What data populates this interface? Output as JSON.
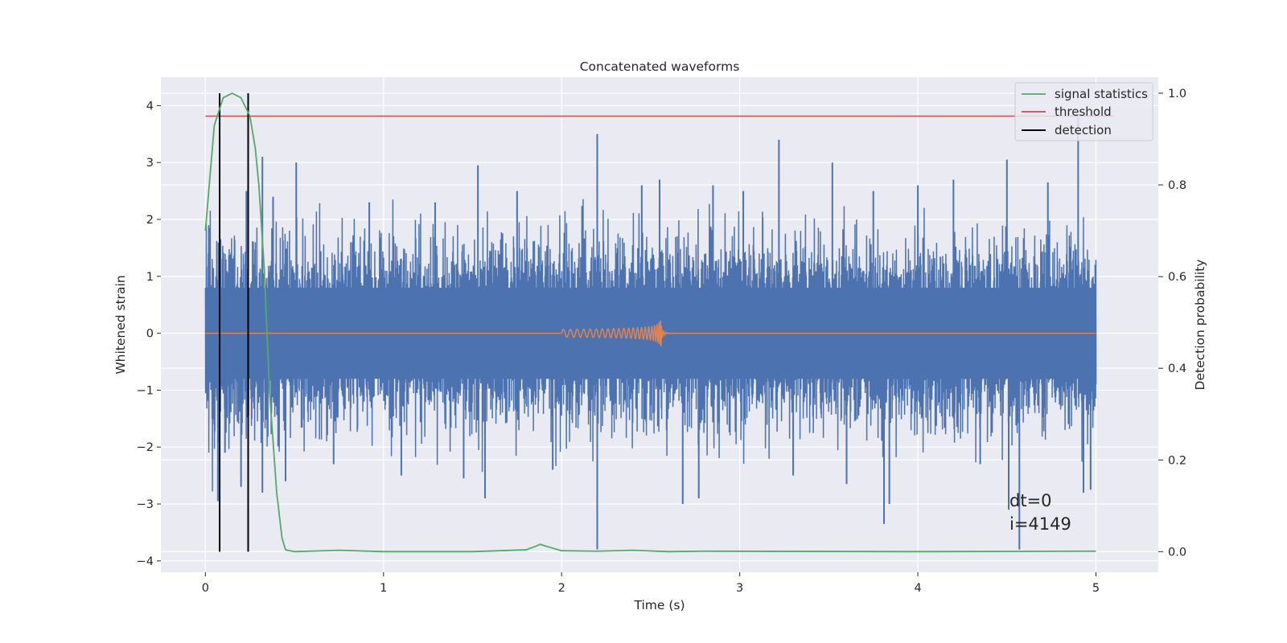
{
  "chart_data": {
    "type": "line",
    "title": "Concatenated waveforms",
    "xlabel": "Time (s)",
    "ylabel": "Whitened strain",
    "y2label": "Detection probability",
    "xlim": [
      -0.25,
      5.35
    ],
    "ylim": [
      -4.2,
      4.5
    ],
    "y2lim": [
      -0.045,
      1.035
    ],
    "xticks": [
      0,
      1,
      2,
      3,
      4,
      5
    ],
    "yticks": [
      -4,
      -3,
      -2,
      -1,
      0,
      1,
      2,
      3,
      4
    ],
    "y2ticks": [
      0.0,
      0.2,
      0.4,
      0.6,
      0.8,
      1.0
    ],
    "xtick_labels": [
      "0",
      "1",
      "2",
      "3",
      "4",
      "5"
    ],
    "ytick_labels": [
      "−4",
      "−3",
      "−2",
      "−1",
      "0",
      "1",
      "2",
      "3",
      "4"
    ],
    "y2tick_labels": [
      "0.0",
      "0.2",
      "0.4",
      "0.6",
      "0.8",
      "1.0"
    ],
    "grid": true,
    "legend_position": "top-right",
    "legend": [
      {
        "label": "signal statistics",
        "color": "#55a868"
      },
      {
        "label": "threshold",
        "color": "#c44e52"
      },
      {
        "label": "detection",
        "color": "#000000"
      }
    ],
    "series": [
      {
        "axis": "left",
        "color": "#4c72b0",
        "style": "noise",
        "x_range": [
          0,
          5
        ],
        "envelope": [
          -3.4,
          3.9
        ],
        "spikes": [
          {
            "x": 0.02,
            "y": 1.85
          },
          {
            "x": 0.07,
            "y": -2.95
          },
          {
            "x": 0.11,
            "y": -2.1
          },
          {
            "x": 0.2,
            "y": -2.7
          },
          {
            "x": 0.23,
            "y": 2.5
          },
          {
            "x": 0.32,
            "y": 3.1
          },
          {
            "x": 0.32,
            "y": -2.8
          },
          {
            "x": 0.38,
            "y": 2.4
          },
          {
            "x": 0.45,
            "y": -2.6
          },
          {
            "x": 0.51,
            "y": 3.0
          },
          {
            "x": 0.72,
            "y": -2.3
          },
          {
            "x": 0.92,
            "y": 2.3
          },
          {
            "x": 1.1,
            "y": -2.5
          },
          {
            "x": 1.29,
            "y": 2.3
          },
          {
            "x": 1.45,
            "y": -2.55
          },
          {
            "x": 1.53,
            "y": 2.95
          },
          {
            "x": 1.57,
            "y": -2.9
          },
          {
            "x": 1.75,
            "y": 2.5
          },
          {
            "x": 1.95,
            "y": -2.4
          },
          {
            "x": 2.2,
            "y": 3.5
          },
          {
            "x": 2.2,
            "y": -3.8
          },
          {
            "x": 2.45,
            "y": 2.6
          },
          {
            "x": 2.55,
            "y": 2.7
          },
          {
            "x": 2.68,
            "y": -3.0
          },
          {
            "x": 2.77,
            "y": -2.9
          },
          {
            "x": 2.85,
            "y": 2.6
          },
          {
            "x": 3.02,
            "y": 2.5
          },
          {
            "x": 3.22,
            "y": 3.4
          },
          {
            "x": 3.3,
            "y": -2.5
          },
          {
            "x": 3.52,
            "y": 3.0
          },
          {
            "x": 3.6,
            "y": -2.65
          },
          {
            "x": 3.75,
            "y": 2.5
          },
          {
            "x": 3.81,
            "y": -3.35
          },
          {
            "x": 3.84,
            "y": -3.0
          },
          {
            "x": 4.0,
            "y": 2.6
          },
          {
            "x": 4.2,
            "y": 2.7
          },
          {
            "x": 4.35,
            "y": -2.3
          },
          {
            "x": 4.5,
            "y": 3.05
          },
          {
            "x": 4.51,
            "y": -3.1
          },
          {
            "x": 4.57,
            "y": -3.8
          },
          {
            "x": 4.73,
            "y": 2.65
          },
          {
            "x": 4.9,
            "y": 3.8
          },
          {
            "x": 4.93,
            "y": -2.8
          },
          {
            "x": 4.97,
            "y": -2.75
          }
        ]
      },
      {
        "axis": "left",
        "color": "#dd8452",
        "style": "chirp",
        "x_range": [
          0,
          5
        ],
        "chirp_start": 2.0,
        "chirp_end": 2.56,
        "chirp_peak_amplitude": 0.45
      },
      {
        "name": "signal statistics",
        "axis": "right",
        "color": "#55a868",
        "x": [
          0.0,
          0.05,
          0.1,
          0.15,
          0.2,
          0.25,
          0.28,
          0.3,
          0.33,
          0.36,
          0.4,
          0.43,
          0.45,
          0.5,
          0.75,
          1.0,
          1.5,
          1.8,
          1.85,
          1.88,
          1.92,
          2.0,
          2.2,
          2.4,
          2.6,
          2.8,
          4.0,
          5.0
        ],
        "y": [
          0.7,
          0.93,
          0.99,
          1.0,
          0.99,
          0.95,
          0.88,
          0.8,
          0.62,
          0.35,
          0.13,
          0.03,
          0.004,
          0.0,
          0.003,
          0.0,
          0.0,
          0.004,
          0.011,
          0.016,
          0.011,
          0.002,
          0.001,
          0.003,
          0.0,
          0.001,
          0.0,
          0.001
        ]
      },
      {
        "name": "threshold",
        "axis": "right",
        "color": "#c44e52",
        "x": [
          0,
          5.1
        ],
        "y": [
          0.95,
          0.95
        ]
      }
    ],
    "detections": [
      {
        "x": 0.08,
        "color": "#000000"
      },
      {
        "x": 0.24,
        "color": "#000000"
      }
    ],
    "annotation": {
      "line1": "dt=0",
      "line2": "i=4149"
    }
  }
}
